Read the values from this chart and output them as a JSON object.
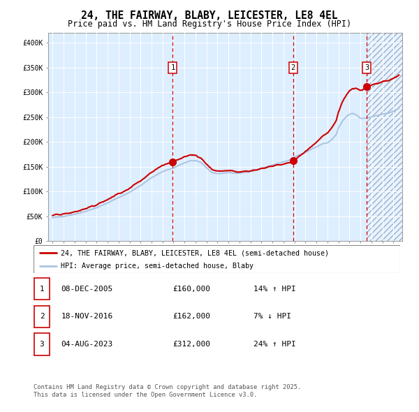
{
  "title": "24, THE FAIRWAY, BLABY, LEICESTER, LE8 4EL",
  "subtitle": "Price paid vs. HM Land Registry's House Price Index (HPI)",
  "legend_line1": "24, THE FAIRWAY, BLABY, LEICESTER, LE8 4EL (semi-detached house)",
  "legend_line2": "HPI: Average price, semi-detached house, Blaby",
  "footer1": "Contains HM Land Registry data © Crown copyright and database right 2025.",
  "footer2": "This data is licensed under the Open Government Licence v3.0.",
  "hpi_color": "#aac4e0",
  "price_color": "#cc0000",
  "bg_color": "#ddeeff",
  "ylim": [
    0,
    420000
  ],
  "yticks": [
    0,
    50000,
    100000,
    150000,
    200000,
    250000,
    300000,
    350000,
    400000
  ],
  "ytick_labels": [
    "£0",
    "£50K",
    "£100K",
    "£150K",
    "£200K",
    "£250K",
    "£300K",
    "£350K",
    "£400K"
  ],
  "xlim_start": 1994.6,
  "xlim_end": 2026.8,
  "sale_dates": [
    2005.93,
    2016.88,
    2023.59
  ],
  "sale_prices": [
    160000,
    162000,
    312000
  ],
  "sale_labels": [
    "1",
    "2",
    "3"
  ],
  "table_rows": [
    [
      "1",
      "08-DEC-2005",
      "£160,000",
      "14% ↑ HPI"
    ],
    [
      "2",
      "18-NOV-2016",
      "£162,000",
      "7% ↓ HPI"
    ],
    [
      "3",
      "04-AUG-2023",
      "£312,000",
      "24% ↑ HPI"
    ]
  ]
}
